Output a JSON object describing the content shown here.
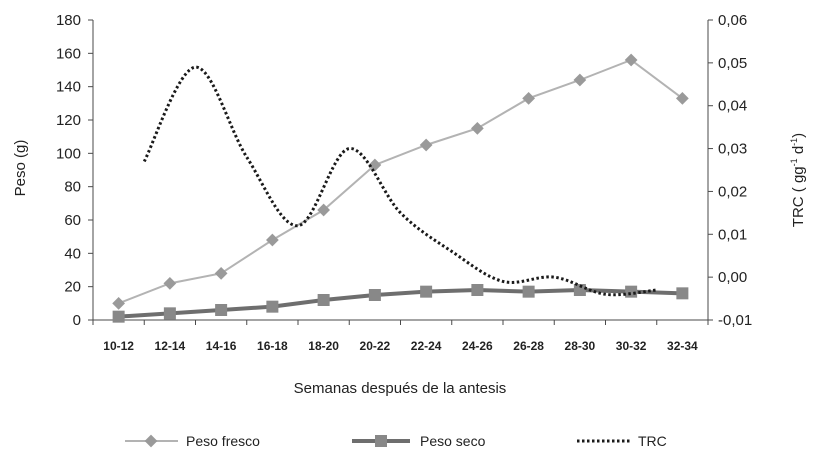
{
  "chart_data": {
    "type": "line",
    "title": "",
    "xlabel": "Semanas después de la antesis",
    "ylabel": "Peso (g)",
    "y2label_main": "TRC ( gg",
    "y2label_sup1": "-1",
    "y2label_mid": " d",
    "y2label_sup2": "-1",
    "y2label_end": ")",
    "categories": [
      "10-12",
      "12-14",
      "14-16",
      "16-18",
      "18-20",
      "20-22",
      "22-24",
      "24-26",
      "26-28",
      "28-30",
      "30-32",
      "32-34"
    ],
    "ylim": [
      0,
      180
    ],
    "yticks": [
      "0",
      "20",
      "40",
      "60",
      "80",
      "100",
      "120",
      "140",
      "160",
      "180"
    ],
    "y2lim": [
      -0.01,
      0.06
    ],
    "y2ticks": [
      "-0,01",
      "0,00",
      "0,01",
      "0,02",
      "0,03",
      "0,04",
      "0,05",
      "0,06"
    ],
    "series": [
      {
        "name": "Peso fresco",
        "axis": "left",
        "color": "#b3b3b3",
        "marker": "diamond",
        "values": [
          10,
          22,
          28,
          48,
          66,
          93,
          105,
          115,
          133,
          144,
          156,
          133
        ]
      },
      {
        "name": "Peso seco",
        "axis": "left",
        "color": "#6e6e6e",
        "marker": "square",
        "values": [
          2,
          4,
          6,
          8,
          12,
          15,
          17,
          18,
          17,
          18,
          17,
          16
        ]
      },
      {
        "name": "TRC",
        "axis": "right",
        "color": "#1a1a1a",
        "style": "dotted",
        "points": [
          {
            "x": "11-13",
            "y": 0.027
          },
          {
            "x": "13-15",
            "y": 0.049
          },
          {
            "x": "15-17",
            "y": 0.028
          },
          {
            "x": "17-19",
            "y": 0.012
          },
          {
            "x": "19-21",
            "y": 0.03
          },
          {
            "x": "21-23",
            "y": 0.015
          },
          {
            "x": "23-25",
            "y": 0.006
          },
          {
            "x": "25-27",
            "y": -0.001
          },
          {
            "x": "27-29",
            "y": 0.0
          },
          {
            "x": "29-31",
            "y": -0.004
          },
          {
            "x": "31-33",
            "y": -0.003
          }
        ]
      }
    ],
    "legend": {
      "placement": "bottom",
      "entries": [
        "Peso fresco",
        "Peso seco",
        "TRC"
      ]
    },
    "grid": false
  }
}
